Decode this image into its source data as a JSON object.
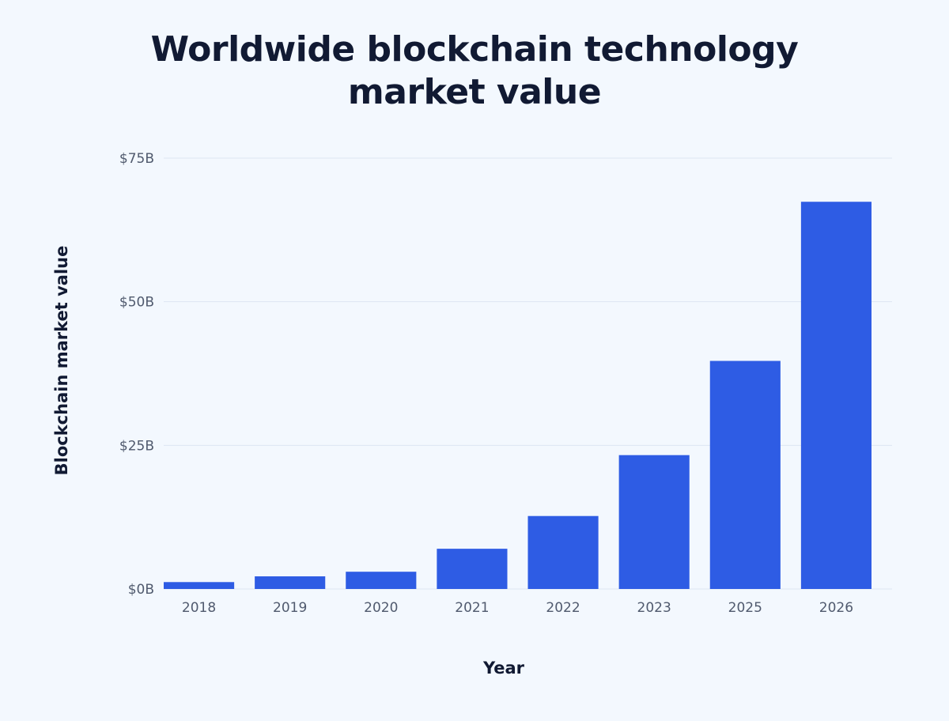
{
  "chart_data": {
    "type": "bar",
    "title_lines": [
      "Worldwide blockchain technology",
      "market value"
    ],
    "xlabel": "Year",
    "ylabel": "Blockchain market value",
    "categories": [
      "2018",
      "2019",
      "2020",
      "2021",
      "2022",
      "2023",
      "2025",
      "2026"
    ],
    "values": [
      1.2,
      2.2,
      3.0,
      7.0,
      12.7,
      23.3,
      39.7,
      67.4
    ],
    "ylim": [
      0,
      75
    ],
    "yticks": [
      0,
      25,
      50,
      75
    ],
    "ytick_labels": [
      "$0B",
      "$25B",
      "$50B",
      "$75B"
    ],
    "grid": true,
    "colors": {
      "bar": "#2e5ce4",
      "grid": "#dde6f2",
      "background": "#f3f8fe"
    }
  }
}
